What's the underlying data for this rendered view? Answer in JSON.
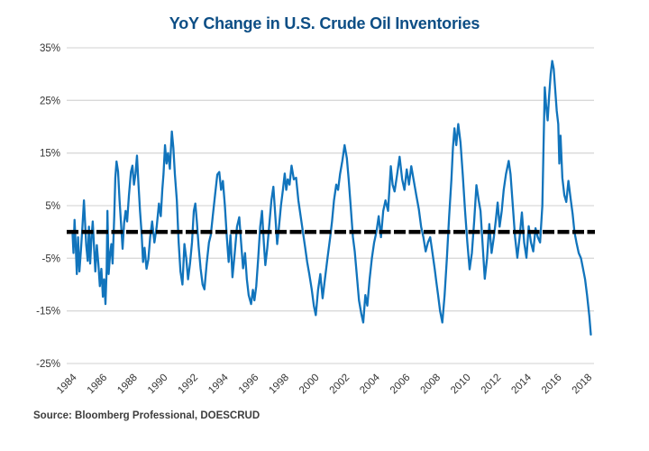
{
  "chart_data": {
    "type": "line",
    "title": "YoY Change in U.S. Crude Oil Inventories",
    "source_note": "Source: Bloomberg Professional, DOESCRUD",
    "title_color": "#0d4e85",
    "text_color": "#333333",
    "grid_color": "#d9d9d9",
    "grid": true,
    "legend": "none",
    "x_range": [
      1983.85,
      2018.35
    ],
    "y_range": [
      -25,
      35
    ],
    "x_tick_labels": [
      "1984",
      "1986",
      "1988",
      "1990",
      "1992",
      "1994",
      "1996",
      "1998",
      "2000",
      "2002",
      "2004",
      "2006",
      "2008",
      "2010",
      "2012",
      "2014",
      "2016",
      "2018"
    ],
    "x_tick_values": [
      1984,
      1986,
      1988,
      1990,
      1992,
      1994,
      1996,
      1998,
      2000,
      2002,
      2004,
      2006,
      2008,
      2010,
      2012,
      2014,
      2016,
      2018
    ],
    "y_tick_labels": [
      "35%",
      "25%",
      "15%",
      "5%",
      "-5%",
      "-15%",
      "-25%"
    ],
    "y_tick_values": [
      35,
      25,
      15,
      5,
      -5,
      -15,
      -25
    ],
    "zero_line": {
      "value": 0,
      "color": "#000000",
      "style": "dashed",
      "width": 4.5
    },
    "series": [
      {
        "name": "YoY % change in U.S. crude oil inventories",
        "color": "#1174bc",
        "points": [
          [
            1984.0,
            -0.5
          ],
          [
            1984.06,
            -4
          ],
          [
            1984.13,
            2.3
          ],
          [
            1984.2,
            -2
          ],
          [
            1984.28,
            -8
          ],
          [
            1984.36,
            -1
          ],
          [
            1984.45,
            -7.5
          ],
          [
            1984.55,
            -3.5
          ],
          [
            1984.65,
            1
          ],
          [
            1984.75,
            6
          ],
          [
            1984.82,
            2
          ],
          [
            1984.9,
            -2.5
          ],
          [
            1985.0,
            -5.5
          ],
          [
            1985.08,
            1
          ],
          [
            1985.16,
            -6
          ],
          [
            1985.25,
            -1
          ],
          [
            1985.33,
            2
          ],
          [
            1985.42,
            -3
          ],
          [
            1985.5,
            -7.5
          ],
          [
            1985.6,
            -2.5
          ],
          [
            1985.7,
            -6
          ],
          [
            1985.8,
            -10.3
          ],
          [
            1985.9,
            -7
          ],
          [
            1986.0,
            -12.3
          ],
          [
            1986.08,
            -9
          ],
          [
            1986.17,
            -13.7
          ],
          [
            1986.25,
            -7
          ],
          [
            1986.3,
            4
          ],
          [
            1986.38,
            -8
          ],
          [
            1986.48,
            -4
          ],
          [
            1986.56,
            -2.3
          ],
          [
            1986.64,
            -6
          ],
          [
            1986.75,
            3
          ],
          [
            1986.82,
            10.3
          ],
          [
            1986.9,
            13.4
          ],
          [
            1987.0,
            11.5
          ],
          [
            1987.1,
            6
          ],
          [
            1987.2,
            1.5
          ],
          [
            1987.3,
            -3.2
          ],
          [
            1987.4,
            1.7
          ],
          [
            1987.5,
            4
          ],
          [
            1987.6,
            2
          ],
          [
            1987.72,
            7
          ],
          [
            1987.85,
            11.4
          ],
          [
            1987.95,
            12.6
          ],
          [
            1988.05,
            9
          ],
          [
            1988.15,
            11
          ],
          [
            1988.25,
            14.5
          ],
          [
            1988.35,
            9
          ],
          [
            1988.45,
            4
          ],
          [
            1988.55,
            0
          ],
          [
            1988.65,
            -5.7
          ],
          [
            1988.75,
            -3
          ],
          [
            1988.88,
            -7
          ],
          [
            1989.0,
            -5.2
          ],
          [
            1989.12,
            -1
          ],
          [
            1989.25,
            2
          ],
          [
            1989.4,
            -2
          ],
          [
            1989.55,
            1
          ],
          [
            1989.7,
            5.4
          ],
          [
            1989.82,
            3
          ],
          [
            1989.92,
            8
          ],
          [
            1990.0,
            11
          ],
          [
            1990.1,
            16.5
          ],
          [
            1990.2,
            13
          ],
          [
            1990.3,
            15
          ],
          [
            1990.42,
            12
          ],
          [
            1990.55,
            19.1
          ],
          [
            1990.65,
            16
          ],
          [
            1990.75,
            11
          ],
          [
            1990.88,
            6
          ],
          [
            1991.0,
            -2
          ],
          [
            1991.12,
            -7.5
          ],
          [
            1991.25,
            -10
          ],
          [
            1991.38,
            -2.3
          ],
          [
            1991.5,
            -5
          ],
          [
            1991.62,
            -9
          ],
          [
            1991.75,
            -6
          ],
          [
            1991.88,
            -2
          ],
          [
            1992.0,
            4
          ],
          [
            1992.1,
            5.4
          ],
          [
            1992.2,
            2
          ],
          [
            1992.32,
            -2.8
          ],
          [
            1992.45,
            -7
          ],
          [
            1992.58,
            -10
          ],
          [
            1992.7,
            -10.9
          ],
          [
            1992.85,
            -6
          ],
          [
            1993.0,
            -2
          ],
          [
            1993.12,
            -0.6
          ],
          [
            1993.25,
            3
          ],
          [
            1993.4,
            7
          ],
          [
            1993.55,
            10.9
          ],
          [
            1993.68,
            11.4
          ],
          [
            1993.8,
            8
          ],
          [
            1993.92,
            9.7
          ],
          [
            1994.05,
            5
          ],
          [
            1994.18,
            -1
          ],
          [
            1994.3,
            -5.7
          ],
          [
            1994.42,
            -0.6
          ],
          [
            1994.55,
            -8.6
          ],
          [
            1994.7,
            -4
          ],
          [
            1994.85,
            1
          ],
          [
            1995.0,
            2.8
          ],
          [
            1995.12,
            -2
          ],
          [
            1995.25,
            -6.9
          ],
          [
            1995.38,
            -4
          ],
          [
            1995.5,
            -9
          ],
          [
            1995.62,
            -12
          ],
          [
            1995.78,
            -13.7
          ],
          [
            1995.9,
            -11
          ],
          [
            1996.0,
            -13
          ],
          [
            1996.12,
            -10.3
          ],
          [
            1996.25,
            -5
          ],
          [
            1996.38,
            1
          ],
          [
            1996.5,
            4
          ],
          [
            1996.62,
            -2
          ],
          [
            1996.72,
            -6.3
          ],
          [
            1996.85,
            -3
          ],
          [
            1997.0,
            2
          ],
          [
            1997.12,
            6
          ],
          [
            1997.25,
            8.6
          ],
          [
            1997.38,
            3
          ],
          [
            1997.5,
            -2.3
          ],
          [
            1997.62,
            1
          ],
          [
            1997.75,
            5
          ],
          [
            1997.88,
            8
          ],
          [
            1998.0,
            11.1
          ],
          [
            1998.1,
            8
          ],
          [
            1998.2,
            10
          ],
          [
            1998.32,
            9
          ],
          [
            1998.45,
            12.6
          ],
          [
            1998.6,
            10
          ],
          [
            1998.75,
            10.3
          ],
          [
            1998.9,
            6
          ],
          [
            1999.05,
            3
          ],
          [
            1999.2,
            0
          ],
          [
            1999.35,
            -3
          ],
          [
            1999.48,
            -5.7
          ],
          [
            1999.62,
            -8
          ],
          [
            1999.78,
            -10.9
          ],
          [
            1999.92,
            -14
          ],
          [
            2000.05,
            -15.8
          ],
          [
            2000.2,
            -11
          ],
          [
            2000.35,
            -8
          ],
          [
            2000.5,
            -12.6
          ],
          [
            2000.65,
            -9
          ],
          [
            2000.82,
            -5
          ],
          [
            2001.0,
            -1
          ],
          [
            2001.12,
            2
          ],
          [
            2001.25,
            6
          ],
          [
            2001.4,
            9
          ],
          [
            2001.52,
            8
          ],
          [
            2001.65,
            11
          ],
          [
            2001.8,
            13.5
          ],
          [
            2001.95,
            16.5
          ],
          [
            2002.1,
            14
          ],
          [
            2002.22,
            10
          ],
          [
            2002.35,
            5
          ],
          [
            2002.5,
            -1
          ],
          [
            2002.62,
            -3.7
          ],
          [
            2002.75,
            -8
          ],
          [
            2002.9,
            -13
          ],
          [
            2003.05,
            -15.5
          ],
          [
            2003.18,
            -17.2
          ],
          [
            2003.32,
            -12
          ],
          [
            2003.45,
            -14
          ],
          [
            2003.6,
            -9
          ],
          [
            2003.75,
            -5
          ],
          [
            2003.9,
            -2
          ],
          [
            2004.05,
            0
          ],
          [
            2004.2,
            3
          ],
          [
            2004.35,
            -1
          ],
          [
            2004.5,
            4
          ],
          [
            2004.65,
            6
          ],
          [
            2004.82,
            4
          ],
          [
            2005.0,
            12.5
          ],
          [
            2005.12,
            9
          ],
          [
            2005.25,
            7.7
          ],
          [
            2005.42,
            11
          ],
          [
            2005.58,
            14.3
          ],
          [
            2005.75,
            10
          ],
          [
            2005.9,
            8
          ],
          [
            2006.05,
            11.9
          ],
          [
            2006.2,
            9
          ],
          [
            2006.35,
            12.5
          ],
          [
            2006.5,
            10
          ],
          [
            2006.68,
            7
          ],
          [
            2006.85,
            4.3
          ],
          [
            2007.0,
            1
          ],
          [
            2007.15,
            -1
          ],
          [
            2007.3,
            -3.7
          ],
          [
            2007.45,
            -2
          ],
          [
            2007.6,
            -1
          ],
          [
            2007.75,
            -4
          ],
          [
            2007.9,
            -7.1
          ],
          [
            2008.0,
            -9.4
          ],
          [
            2008.12,
            -12
          ],
          [
            2008.25,
            -15
          ],
          [
            2008.4,
            -17.2
          ],
          [
            2008.55,
            -12
          ],
          [
            2008.7,
            -5
          ],
          [
            2008.85,
            3
          ],
          [
            2009.0,
            10
          ],
          [
            2009.1,
            16
          ],
          [
            2009.2,
            19.7
          ],
          [
            2009.32,
            16.5
          ],
          [
            2009.45,
            20.5
          ],
          [
            2009.6,
            17
          ],
          [
            2009.75,
            10.8
          ],
          [
            2009.9,
            4
          ],
          [
            2010.05,
            -2
          ],
          [
            2010.2,
            -7.1
          ],
          [
            2010.35,
            -4
          ],
          [
            2010.5,
            2
          ],
          [
            2010.65,
            8.9
          ],
          [
            2010.8,
            6
          ],
          [
            2010.92,
            4
          ],
          [
            2011.05,
            -2
          ],
          [
            2011.2,
            -8.9
          ],
          [
            2011.35,
            -5
          ],
          [
            2011.5,
            1.5
          ],
          [
            2011.65,
            -4
          ],
          [
            2011.8,
            -1
          ],
          [
            2011.92,
            2
          ],
          [
            2012.05,
            5.6
          ],
          [
            2012.18,
            1
          ],
          [
            2012.32,
            4
          ],
          [
            2012.45,
            8
          ],
          [
            2012.6,
            11
          ],
          [
            2012.78,
            13.5
          ],
          [
            2012.9,
            11
          ],
          [
            2013.05,
            5
          ],
          [
            2013.2,
            -1
          ],
          [
            2013.35,
            -4.9
          ],
          [
            2013.5,
            -1
          ],
          [
            2013.65,
            3.7
          ],
          [
            2013.8,
            -2
          ],
          [
            2013.95,
            -4.9
          ],
          [
            2014.1,
            1.1
          ],
          [
            2014.25,
            -2
          ],
          [
            2014.4,
            -3.7
          ],
          [
            2014.55,
            0.7
          ],
          [
            2014.7,
            -1
          ],
          [
            2014.85,
            -2
          ],
          [
            2015.0,
            5
          ],
          [
            2015.08,
            16.5
          ],
          [
            2015.16,
            27.5
          ],
          [
            2015.25,
            24
          ],
          [
            2015.35,
            21.2
          ],
          [
            2015.45,
            26
          ],
          [
            2015.55,
            30
          ],
          [
            2015.65,
            32.5
          ],
          [
            2015.75,
            31
          ],
          [
            2015.85,
            27
          ],
          [
            2015.95,
            23
          ],
          [
            2016.05,
            20.5
          ],
          [
            2016.12,
            13
          ],
          [
            2016.2,
            18.3
          ],
          [
            2016.32,
            10.3
          ],
          [
            2016.45,
            7
          ],
          [
            2016.58,
            5.7
          ],
          [
            2016.72,
            9.7
          ],
          [
            2016.88,
            6
          ],
          [
            2017.0,
            3.4
          ],
          [
            2017.12,
            0
          ],
          [
            2017.25,
            -2
          ],
          [
            2017.4,
            -4
          ],
          [
            2017.55,
            -5
          ],
          [
            2017.68,
            -6.9
          ],
          [
            2017.82,
            -9
          ],
          [
            2017.95,
            -12
          ],
          [
            2018.1,
            -16
          ],
          [
            2018.2,
            -19.5
          ]
        ]
      }
    ]
  }
}
